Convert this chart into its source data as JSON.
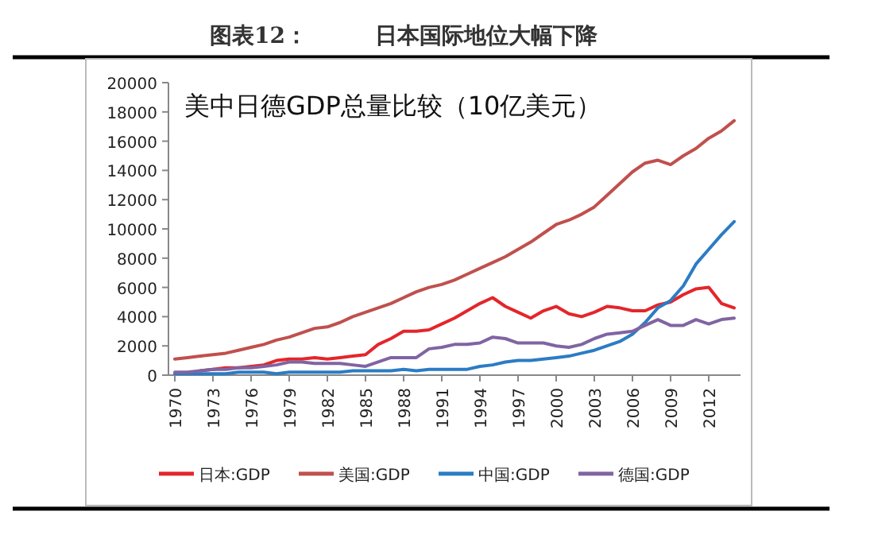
{
  "chart_data": {
    "type": "line",
    "title": "日本国际地位大幅下降",
    "subtitle": "美中日德GDP总量比较（10亿美元）",
    "annotations": [
      "图表12："
    ],
    "x": [
      1970,
      1971,
      1972,
      1973,
      1974,
      1975,
      1976,
      1977,
      1978,
      1979,
      1980,
      1981,
      1982,
      1983,
      1984,
      1985,
      1986,
      1987,
      1988,
      1989,
      1990,
      1991,
      1992,
      1993,
      1994,
      1995,
      1996,
      1997,
      1998,
      1999,
      2000,
      2001,
      2002,
      2003,
      2004,
      2005,
      2006,
      2007,
      2008,
      2009,
      2010,
      2011,
      2012,
      2013,
      2014
    ],
    "xlim": [
      1969.5,
      2014.5
    ],
    "xticks": [
      1970,
      1973,
      1976,
      1979,
      1982,
      1985,
      1988,
      1991,
      1994,
      1997,
      2000,
      2003,
      2006,
      2009,
      2012
    ],
    "ylim": [
      0,
      20000
    ],
    "yticks": [
      0,
      2000,
      4000,
      6000,
      8000,
      10000,
      12000,
      14000,
      16000,
      18000,
      20000
    ],
    "grid": false,
    "legend": "bottom",
    "line_style": "solid",
    "marker": "none",
    "series": [
      {
        "name": "日本:GDP",
        "color": "#e3262b",
        "values": [
          null,
          null,
          300,
          400,
          500,
          500,
          600,
          700,
          1000,
          1100,
          1100,
          1200,
          1100,
          1200,
          1300,
          1400,
          2100,
          2500,
          3000,
          3000,
          3100,
          3500,
          3900,
          4400,
          4900,
          5300,
          4700,
          4300,
          3900,
          4400,
          4700,
          4200,
          4000,
          4300,
          4700,
          4600,
          4400,
          4400,
          4800,
          5000,
          5500,
          5900,
          6000,
          4900,
          4600
        ]
      },
      {
        "name": "美国:GDP",
        "color": "#c0504d",
        "values": [
          1100,
          1200,
          1300,
          1400,
          1500,
          1700,
          1900,
          2100,
          2400,
          2600,
          2900,
          3200,
          3300,
          3600,
          4000,
          4300,
          4600,
          4900,
          5300,
          5700,
          6000,
          6200,
          6500,
          6900,
          7300,
          7700,
          8100,
          8600,
          9100,
          9700,
          10300,
          10600,
          11000,
          11500,
          12300,
          13100,
          13900,
          14500,
          14700,
          14400,
          15000,
          15500,
          16200,
          16700,
          17400
        ]
      },
      {
        "name": "中国:GDP",
        "color": "#2b7cc4",
        "values": [
          100,
          100,
          100,
          100,
          100,
          200,
          200,
          200,
          100,
          200,
          200,
          200,
          200,
          200,
          300,
          300,
          300,
          300,
          400,
          300,
          400,
          400,
          400,
          400,
          600,
          700,
          900,
          1000,
          1000,
          1100,
          1200,
          1300,
          1500,
          1700,
          2000,
          2300,
          2800,
          3600,
          4600,
          5100,
          6100,
          7600,
          8600,
          9600,
          10500
        ]
      },
      {
        "name": "德国:GDP",
        "color": "#8064a2",
        "values": [
          200,
          200,
          300,
          400,
          400,
          500,
          500,
          600,
          700,
          900,
          900,
          800,
          800,
          800,
          700,
          600,
          900,
          1200,
          1200,
          1200,
          1800,
          1900,
          2100,
          2100,
          2200,
          2600,
          2500,
          2200,
          2200,
          2200,
          2000,
          1900,
          2100,
          2500,
          2800,
          2900,
          3000,
          3400,
          3800,
          3400,
          3400,
          3800,
          3500,
          3800,
          3900
        ]
      }
    ]
  }
}
